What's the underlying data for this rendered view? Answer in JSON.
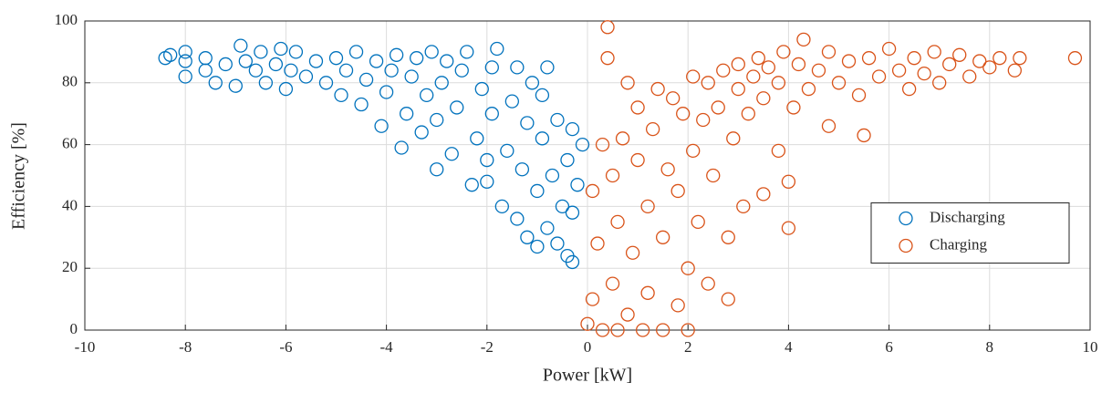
{
  "chart_data": {
    "type": "scatter",
    "xlabel": "Power [kW]",
    "ylabel": "Efficiency [%]",
    "xlim": [
      -10,
      10
    ],
    "xticks": [
      -10,
      -8,
      -6,
      -4,
      -2,
      0,
      2,
      4,
      6,
      8,
      10
    ],
    "ylim": [
      0,
      100
    ],
    "yticks": [
      0,
      20,
      40,
      60,
      80,
      100
    ],
    "grid": true,
    "legend": "east",
    "series": [
      {
        "name": "Discharging",
        "color": "#0072bd",
        "x": [
          -8.4,
          -8.3,
          -8.0,
          -8.0,
          -8.0,
          -7.6,
          -7.6,
          -7.4,
          -7.2,
          -7.0,
          -6.9,
          -6.8,
          -6.6,
          -6.5,
          -6.4,
          -6.2,
          -6.1,
          -6.0,
          -5.9,
          -5.8,
          -5.6,
          -5.4,
          -5.2,
          -5.0,
          -4.9,
          -4.8,
          -4.6,
          -4.5,
          -4.4,
          -4.2,
          -4.1,
          -4.0,
          -3.9,
          -3.8,
          -3.7,
          -3.6,
          -3.5,
          -3.4,
          -3.3,
          -3.2,
          -3.1,
          -3.0,
          -3.0,
          -2.9,
          -2.8,
          -2.7,
          -2.6,
          -2.5,
          -2.4,
          -2.3,
          -2.2,
          -2.1,
          -2.0,
          -2.0,
          -1.9,
          -1.9,
          -1.8,
          -1.7,
          -1.6,
          -1.5,
          -1.4,
          -1.4,
          -1.3,
          -1.2,
          -1.2,
          -1.1,
          -1.0,
          -1.0,
          -0.9,
          -0.9,
          -0.8,
          -0.8,
          -0.7,
          -0.6,
          -0.6,
          -0.5,
          -0.4,
          -0.4,
          -0.3,
          -0.3,
          -0.3,
          -0.2,
          -0.1
        ],
        "values": [
          88,
          89,
          82,
          87,
          90,
          84,
          88,
          80,
          86,
          79,
          92,
          87,
          84,
          90,
          80,
          86,
          91,
          78,
          84,
          90,
          82,
          87,
          80,
          88,
          76,
          84,
          90,
          73,
          81,
          87,
          66,
          77,
          84,
          89,
          59,
          70,
          82,
          88,
          64,
          76,
          90,
          52,
          68,
          80,
          87,
          57,
          72,
          84,
          90,
          47,
          62,
          78,
          48,
          55,
          70,
          85,
          91,
          40,
          58,
          74,
          85,
          36,
          52,
          30,
          67,
          80,
          27,
          45,
          62,
          76,
          33,
          85,
          50,
          28,
          68,
          40,
          24,
          55,
          22,
          65,
          38,
          47,
          60
        ]
      },
      {
        "name": "Charging",
        "color": "#d95319",
        "x": [
          0.0,
          0.1,
          0.1,
          0.2,
          0.3,
          0.4,
          0.4,
          0.3,
          0.5,
          0.5,
          0.6,
          0.6,
          0.7,
          0.8,
          0.8,
          0.9,
          1.0,
          1.0,
          1.1,
          1.2,
          1.2,
          1.3,
          1.4,
          1.5,
          1.5,
          1.6,
          1.7,
          1.8,
          1.8,
          1.9,
          2.0,
          2.0,
          2.1,
          2.1,
          2.2,
          2.3,
          2.4,
          2.4,
          2.5,
          2.6,
          2.7,
          2.8,
          2.8,
          2.9,
          3.0,
          3.0,
          3.1,
          3.2,
          3.3,
          3.4,
          3.5,
          3.5,
          3.6,
          3.8,
          3.8,
          3.9,
          4.0,
          4.0,
          4.1,
          4.2,
          4.3,
          4.4,
          4.6,
          4.8,
          4.8,
          5.0,
          5.2,
          5.4,
          5.5,
          5.6,
          5.8,
          6.0,
          6.2,
          6.4,
          6.5,
          6.7,
          6.9,
          7.0,
          7.2,
          7.4,
          7.6,
          7.8,
          8.0,
          8.2,
          8.5,
          8.6,
          9.7
        ],
        "values": [
          2,
          10,
          45,
          28,
          60,
          98,
          88,
          0,
          15,
          50,
          0,
          35,
          62,
          80,
          5,
          25,
          55,
          72,
          0,
          40,
          12,
          65,
          78,
          0,
          30,
          52,
          75,
          8,
          45,
          70,
          0,
          20,
          58,
          82,
          35,
          68,
          80,
          15,
          50,
          72,
          84,
          10,
          30,
          62,
          78,
          86,
          40,
          70,
          82,
          88,
          44,
          75,
          85,
          58,
          80,
          90,
          33,
          48,
          72,
          86,
          94,
          78,
          84,
          66,
          90,
          80,
          87,
          76,
          63,
          88,
          82,
          91,
          84,
          78,
          88,
          83,
          90,
          80,
          86,
          89,
          82,
          87,
          85,
          88,
          84,
          88,
          88
        ]
      }
    ]
  }
}
